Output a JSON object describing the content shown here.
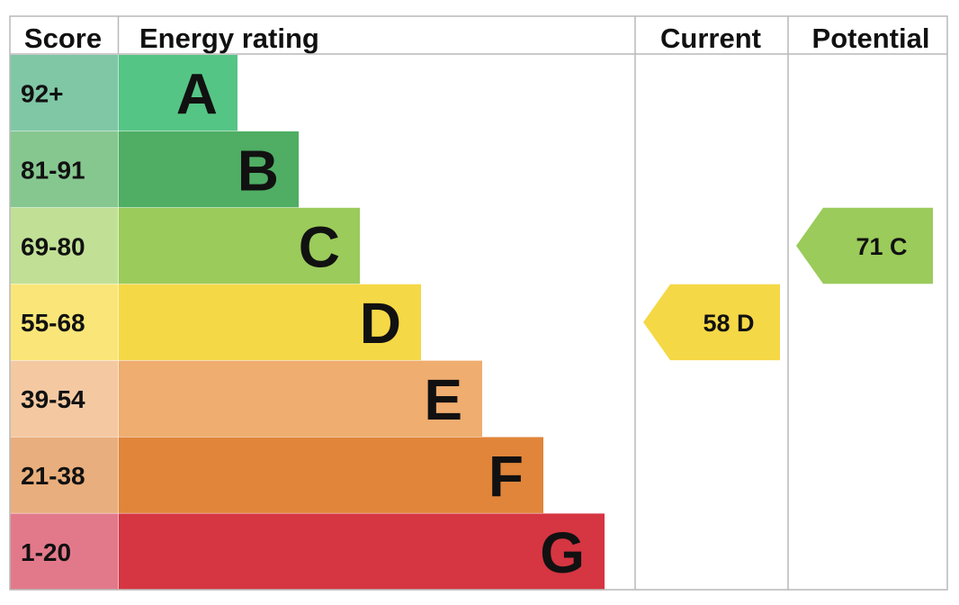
{
  "chart_data": {
    "type": "bar",
    "title": "",
    "headers": {
      "score": "Score",
      "rating": "Energy rating",
      "current": "Current",
      "potential": "Potential"
    },
    "bands": [
      {
        "letter": "A",
        "range": "92+",
        "color": "#55c585",
        "score_color": "#80c7a6"
      },
      {
        "letter": "B",
        "range": "81-91",
        "color": "#4fae63",
        "score_color": "#86c78f"
      },
      {
        "letter": "C",
        "range": "69-80",
        "color": "#9bcb5b",
        "score_color": "#c1e096"
      },
      {
        "letter": "D",
        "range": "55-68",
        "color": "#f5d846",
        "score_color": "#fae678"
      },
      {
        "letter": "E",
        "range": "39-54",
        "color": "#efad6f",
        "score_color": "#f4c9a2"
      },
      {
        "letter": "F",
        "range": "21-38",
        "color": "#e0853a",
        "score_color": "#e9ae7d"
      },
      {
        "letter": "G",
        "range": "1-20",
        "color": "#d63542",
        "score_color": "#e2798a"
      }
    ],
    "current": {
      "value": 58,
      "band": "D",
      "label": "58  D",
      "color": "#f5d846"
    },
    "potential": {
      "value": 71,
      "band": "C",
      "label": "71  C",
      "color": "#9bcb5b"
    }
  }
}
